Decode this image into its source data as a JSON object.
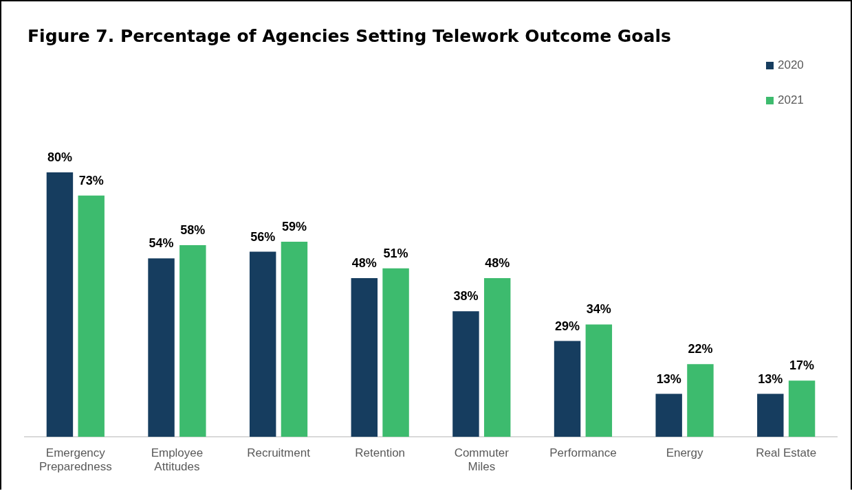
{
  "chart_data": {
    "type": "bar",
    "title": "Figure 7. Percentage of Agencies Setting Telework Outcome Goals",
    "categories": [
      "Emergency Preparedness",
      "Employee Attitudes",
      "Recruitment",
      "Retention",
      "Commuter Miles",
      "Performance",
      "Energy",
      "Real Estate"
    ],
    "series": [
      {
        "name": "2020",
        "color": "#163d5f",
        "values": [
          80,
          54,
          56,
          48,
          38,
          29,
          13,
          13
        ],
        "value_labels": [
          "80%",
          "54%",
          "56%",
          "48%",
          "38%",
          "29%",
          "13%",
          "13%"
        ]
      },
      {
        "name": "2021",
        "color": "#3dbb6e",
        "values": [
          73,
          58,
          59,
          51,
          48,
          34,
          22,
          17
        ],
        "value_labels": [
          "73%",
          "58%",
          "59%",
          "51%",
          "48%",
          "34%",
          "22%",
          "17%"
        ]
      }
    ],
    "legend": "top right",
    "grid": false,
    "tick_labels": "x"
  }
}
